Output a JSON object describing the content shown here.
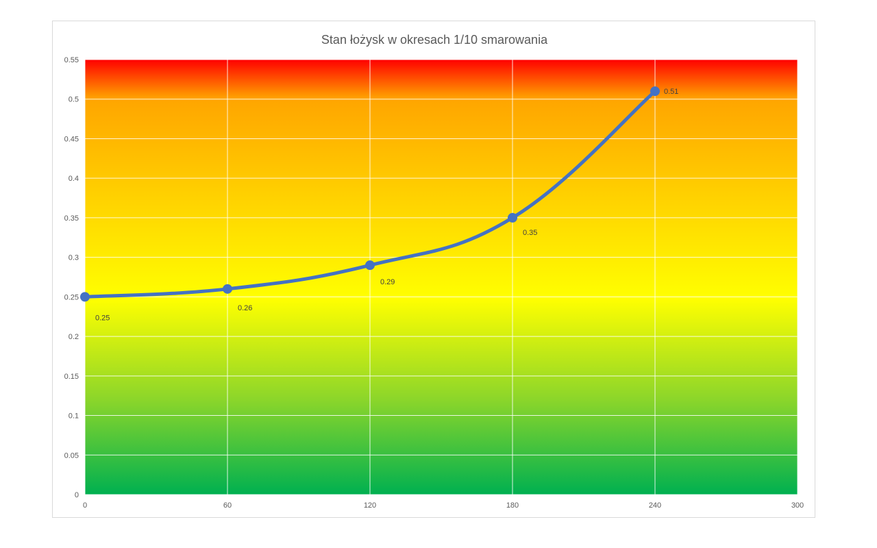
{
  "chart_data": {
    "type": "line",
    "title": "Stan łożysk w okresach 1/10 smarowania",
    "xlabel": "",
    "ylabel": "",
    "xlim": [
      0,
      300
    ],
    "ylim": [
      0,
      0.55
    ],
    "x_ticks": [
      "0",
      "60",
      "120",
      "180",
      "240",
      "300"
    ],
    "y_ticks": [
      "0",
      "0.05",
      "0.1",
      "0.15",
      "0.2",
      "0.25",
      "0.3",
      "0.35",
      "0.4",
      "0.45",
      "0.5",
      "0.55"
    ],
    "grid": true,
    "legend": "none",
    "smooth": true,
    "series": [
      {
        "x": [
          0,
          60,
          120,
          180,
          240
        ],
        "y": [
          0.25,
          0.26,
          0.29,
          0.35,
          0.51
        ],
        "data_labels": [
          "0.25",
          "0.26",
          "0.29",
          "0.35",
          "0.51"
        ]
      }
    ],
    "colors": {
      "line": "#4472c4",
      "background_top": "#ff0000",
      "background_yellow": "#ffff00",
      "background_bottom": "#00b050",
      "gridline": "#ffffff",
      "tick_text": "#595959"
    }
  }
}
